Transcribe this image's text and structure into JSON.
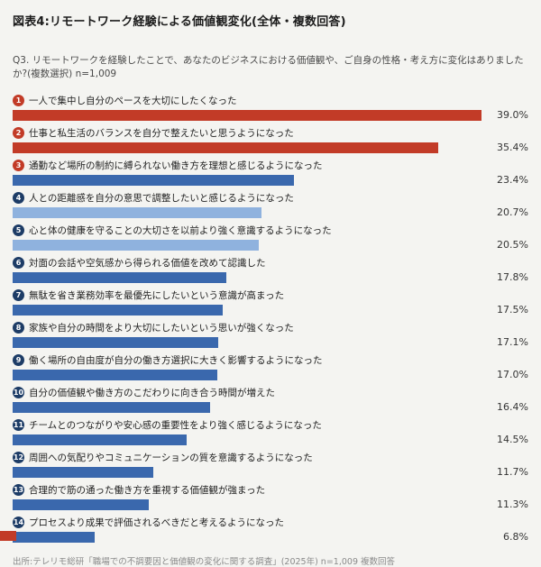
{
  "page": {
    "title": "図表4:リモートワーク経験による価値観変化(全体・複数回答)",
    "question": "Q3. リモートワークを経験したことで、あなたのビジネスにおける価値観や、ご自身の性格・考え方に変化はありましたか?(複数選択) n=1,009",
    "source": "出所:テレリモ総研「職場での不調要因と価値観の変化に関する調査」(2025年) n=1,009  複数回答"
  },
  "colors": {
    "red": "#c23b27",
    "blue": "#3a68ad",
    "light_blue": "#8fb2de",
    "navy_badge": "#1d3c66",
    "background": "#f4f4f1"
  },
  "chart_data": {
    "type": "bar",
    "orientation": "horizontal",
    "title": "図表4:リモートワーク経験による価値観変化(全体・複数回答)",
    "value_suffix": "%",
    "xlim": [
      0,
      40
    ],
    "n": "1,009",
    "grid": false,
    "legend": "none",
    "categories": [
      "一人で集中し自分のペースを大切にしたくなった",
      "仕事と私生活のバランスを自分で整えたいと思うようになった",
      "通勤など場所の制約に縛られない働き方を理想と感じるようになった",
      "人との距離感を自分の意思で調整したいと感じるようになった",
      "心と体の健康を守ることの大切さを以前より強く意識するようになった",
      "対面の会話や空気感から得られる価値を改めて認識した",
      "無駄を省き業務効率を最優先にしたいという意識が高まった",
      "家族や自分の時間をより大切にしたいという思いが強くなった",
      "働く場所の自由度が自分の働き方選択に大きく影響するようになった",
      "自分の価値観や働き方のこだわりに向き合う時間が増えた",
      "チームとのつながりや安心感の重要性をより強く感じるようになった",
      "周囲への気配りやコミュニケーションの質を意識するようになった",
      "合理的で筋の通った働き方を重視する価値観が強まった",
      "プロセスより成果で評価されるべきだと考えるようになった"
    ],
    "values": [
      39.0,
      35.4,
      23.4,
      20.7,
      20.5,
      17.8,
      17.5,
      17.1,
      17.0,
      16.4,
      14.5,
      11.7,
      11.3,
      6.8
    ],
    "ranks": [
      1,
      2,
      3,
      4,
      5,
      6,
      7,
      8,
      9,
      10,
      11,
      12,
      13,
      14
    ],
    "bar_color_keys": [
      "red",
      "red",
      "blue",
      "light_blue",
      "light_blue",
      "blue",
      "blue",
      "blue",
      "blue",
      "blue",
      "blue",
      "blue",
      "blue",
      "blue"
    ],
    "badge_color_keys": [
      "red",
      "red",
      "red",
      "navy_badge",
      "navy_badge",
      "navy_badge",
      "navy_badge",
      "navy_badge",
      "navy_badge",
      "navy_badge",
      "navy_badge",
      "navy_badge",
      "navy_badge",
      "navy_badge"
    ]
  }
}
